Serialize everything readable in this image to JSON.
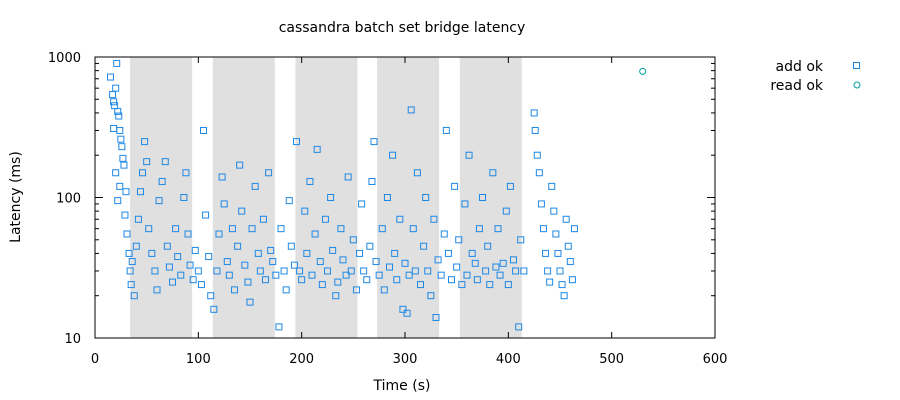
{
  "chart_data": {
    "type": "scatter",
    "title": "cassandra batch set bridge latency",
    "xlabel": "Time (s)",
    "ylabel": "Latency (ms)",
    "xlim": [
      0,
      600
    ],
    "ylim": [
      10,
      1000
    ],
    "y_scale": "log",
    "x_ticks": [
      "0",
      "100",
      "200",
      "300",
      "400",
      "500",
      "600"
    ],
    "y_ticks": [
      "10",
      "100",
      "1000"
    ],
    "grid": false,
    "legend_position": "top-right",
    "shaded_intervals": [
      [
        34,
        94
      ],
      [
        114,
        174
      ],
      [
        194,
        254
      ],
      [
        273,
        333
      ],
      [
        353,
        413
      ]
    ],
    "colors": {
      "add_ok": "#1e88e5",
      "read_ok": "#00a0a0",
      "shade": "#e0e0e0"
    },
    "series": [
      {
        "name": "add ok",
        "marker": "square",
        "points": [
          [
            15,
            720
          ],
          [
            17,
            540
          ],
          [
            18,
            480
          ],
          [
            19,
            450
          ],
          [
            20,
            600
          ],
          [
            21,
            900
          ],
          [
            22,
            410
          ],
          [
            23,
            380
          ],
          [
            24,
            300
          ],
          [
            25,
            260
          ],
          [
            26,
            230
          ],
          [
            18,
            310
          ],
          [
            20,
            150
          ],
          [
            22,
            95
          ],
          [
            24,
            120
          ],
          [
            27,
            190
          ],
          [
            28,
            170
          ],
          [
            30,
            110
          ],
          [
            29,
            75
          ],
          [
            31,
            55
          ],
          [
            33,
            40
          ],
          [
            34,
            30
          ],
          [
            35,
            24
          ],
          [
            36,
            35
          ],
          [
            38,
            20
          ],
          [
            40,
            45
          ],
          [
            42,
            70
          ],
          [
            44,
            110
          ],
          [
            46,
            150
          ],
          [
            48,
            250
          ],
          [
            50,
            180
          ],
          [
            52,
            60
          ],
          [
            55,
            40
          ],
          [
            58,
            30
          ],
          [
            60,
            22
          ],
          [
            62,
            95
          ],
          [
            65,
            130
          ],
          [
            68,
            180
          ],
          [
            70,
            45
          ],
          [
            72,
            32
          ],
          [
            75,
            25
          ],
          [
            78,
            60
          ],
          [
            80,
            38
          ],
          [
            83,
            28
          ],
          [
            86,
            100
          ],
          [
            88,
            150
          ],
          [
            90,
            55
          ],
          [
            92,
            33
          ],
          [
            95,
            26
          ],
          [
            97,
            42
          ],
          [
            100,
            30
          ],
          [
            103,
            24
          ],
          [
            105,
            300
          ],
          [
            107,
            75
          ],
          [
            110,
            38
          ],
          [
            112,
            20
          ],
          [
            115,
            16
          ],
          [
            118,
            30
          ],
          [
            120,
            55
          ],
          [
            123,
            140
          ],
          [
            125,
            90
          ],
          [
            128,
            35
          ],
          [
            130,
            28
          ],
          [
            133,
            60
          ],
          [
            135,
            22
          ],
          [
            138,
            45
          ],
          [
            140,
            170
          ],
          [
            142,
            80
          ],
          [
            145,
            33
          ],
          [
            148,
            25
          ],
          [
            150,
            18
          ],
          [
            152,
            60
          ],
          [
            155,
            120
          ],
          [
            158,
            40
          ],
          [
            160,
            30
          ],
          [
            163,
            70
          ],
          [
            165,
            26
          ],
          [
            168,
            150
          ],
          [
            170,
            42
          ],
          [
            172,
            35
          ],
          [
            175,
            28
          ],
          [
            178,
            12
          ],
          [
            180,
            60
          ],
          [
            183,
            30
          ],
          [
            185,
            22
          ],
          [
            188,
            95
          ],
          [
            190,
            45
          ],
          [
            193,
            33
          ],
          [
            195,
            250
          ],
          [
            198,
            30
          ],
          [
            200,
            26
          ],
          [
            203,
            80
          ],
          [
            205,
            40
          ],
          [
            208,
            130
          ],
          [
            210,
            28
          ],
          [
            213,
            55
          ],
          [
            215,
            220
          ],
          [
            218,
            35
          ],
          [
            220,
            24
          ],
          [
            223,
            70
          ],
          [
            225,
            30
          ],
          [
            228,
            100
          ],
          [
            230,
            42
          ],
          [
            233,
            20
          ],
          [
            235,
            25
          ],
          [
            238,
            60
          ],
          [
            240,
            36
          ],
          [
            243,
            28
          ],
          [
            245,
            140
          ],
          [
            248,
            30
          ],
          [
            250,
            50
          ],
          [
            253,
            22
          ],
          [
            256,
            40
          ],
          [
            258,
            90
          ],
          [
            260,
            30
          ],
          [
            263,
            26
          ],
          [
            266,
            45
          ],
          [
            268,
            130
          ],
          [
            270,
            250
          ],
          [
            272,
            35
          ],
          [
            275,
            28
          ],
          [
            278,
            60
          ],
          [
            280,
            22
          ],
          [
            283,
            100
          ],
          [
            285,
            32
          ],
          [
            288,
            200
          ],
          [
            290,
            40
          ],
          [
            292,
            26
          ],
          [
            295,
            70
          ],
          [
            298,
            16
          ],
          [
            300,
            34
          ],
          [
            302,
            15
          ],
          [
            304,
            28
          ],
          [
            306,
            420
          ],
          [
            308,
            60
          ],
          [
            310,
            30
          ],
          [
            312,
            150
          ],
          [
            315,
            24
          ],
          [
            318,
            45
          ],
          [
            320,
            100
          ],
          [
            322,
            30
          ],
          [
            325,
            20
          ],
          [
            328,
            70
          ],
          [
            330,
            14
          ],
          [
            332,
            36
          ],
          [
            335,
            28
          ],
          [
            338,
            55
          ],
          [
            340,
            300
          ],
          [
            342,
            40
          ],
          [
            345,
            26
          ],
          [
            348,
            120
          ],
          [
            350,
            32
          ],
          [
            352,
            50
          ],
          [
            355,
            24
          ],
          [
            358,
            90
          ],
          [
            360,
            28
          ],
          [
            362,
            200
          ],
          [
            365,
            40
          ],
          [
            368,
            34
          ],
          [
            370,
            26
          ],
          [
            372,
            60
          ],
          [
            375,
            100
          ],
          [
            378,
            30
          ],
          [
            380,
            45
          ],
          [
            382,
            24
          ],
          [
            385,
            150
          ],
          [
            388,
            32
          ],
          [
            390,
            60
          ],
          [
            392,
            28
          ],
          [
            395,
            34
          ],
          [
            398,
            80
          ],
          [
            400,
            24
          ],
          [
            402,
            120
          ],
          [
            405,
            36
          ],
          [
            407,
            30
          ],
          [
            410,
            12
          ],
          [
            412,
            50
          ],
          [
            415,
            30
          ],
          [
            425,
            400
          ],
          [
            426,
            300
          ],
          [
            428,
            200
          ],
          [
            430,
            150
          ],
          [
            432,
            90
          ],
          [
            434,
            60
          ],
          [
            436,
            40
          ],
          [
            438,
            30
          ],
          [
            440,
            25
          ],
          [
            442,
            120
          ],
          [
            444,
            80
          ],
          [
            446,
            55
          ],
          [
            448,
            40
          ],
          [
            450,
            30
          ],
          [
            452,
            24
          ],
          [
            454,
            20
          ],
          [
            456,
            70
          ],
          [
            458,
            45
          ],
          [
            460,
            35
          ],
          [
            462,
            26
          ],
          [
            464,
            60
          ]
        ]
      },
      {
        "name": "read ok",
        "marker": "circle",
        "points": [
          [
            530,
            790
          ]
        ]
      }
    ]
  }
}
